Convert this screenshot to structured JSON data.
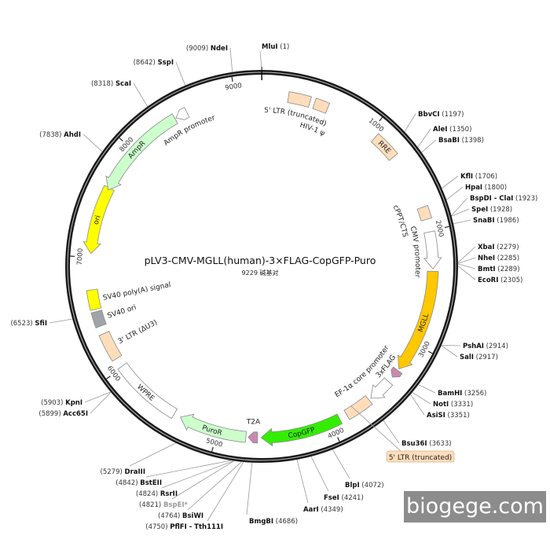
{
  "plasmid": {
    "title": "pLV3-CMV-MGLL(human)-3×FLAG-CopGFP-Puro",
    "subtitle": "9229 碱基对",
    "length_bp": 9229
  },
  "ticks": [
    1000,
    2000,
    3000,
    4000,
    5000,
    6000,
    7000,
    8000,
    9000
  ],
  "features": [
    {
      "name": "5' LTR (truncated)",
      "start": 230,
      "end": 420,
      "dir": 0,
      "color": "#FFDDBB",
      "label_pos": "inside-arc"
    },
    {
      "name": "HIV-1 ψ",
      "start": 460,
      "end": 580,
      "dir": 0,
      "color": "#FFDDBB",
      "label_pos": "inside-arc"
    },
    {
      "name": "RRE",
      "start": 1060,
      "end": 1290,
      "dir": 0,
      "color": "#FFDDBB",
      "label_pos": "on"
    },
    {
      "name": "cPPT/CTS",
      "start": 1790,
      "end": 1900,
      "dir": 0,
      "color": "#FFDDBB",
      "label_pos": "inside-arc"
    },
    {
      "name": "CMV promoter",
      "start": 2010,
      "end": 2330,
      "dir": 1,
      "color": "#FFFFFF",
      "label_pos": "inside-arc"
    },
    {
      "name": "MGLL",
      "start": 2350,
      "end": 3250,
      "dir": 1,
      "color": "#FFC800",
      "label_pos": "on"
    },
    {
      "name": "3xFLAG",
      "start": 3265,
      "end": 3340,
      "dir": 1,
      "color": "#C98AAE",
      "label_pos": "inside-arc"
    },
    {
      "name": "EF-1α core promoter",
      "start": 3390,
      "end": 3600,
      "dir": 1,
      "color": "#FFFFFF",
      "label_pos": "inside-arc"
    },
    {
      "name": "5' LTR (truncated)",
      "start": 3620,
      "end": 3850,
      "dir": 0,
      "color": "#FFDDBB",
      "label_pos": "callout"
    },
    {
      "name": "CopGFP",
      "start": 3920,
      "end": 4620,
      "dir": 1,
      "color": "#33EE00",
      "label_pos": "on"
    },
    {
      "name": "T2A",
      "start": 4650,
      "end": 4730,
      "dir": 1,
      "color": "#C98AAE",
      "label_pos": "outside-top"
    },
    {
      "name": "PuroR",
      "start": 4750,
      "end": 5340,
      "dir": 1,
      "color": "#CCFFCC",
      "label_pos": "on"
    },
    {
      "name": "WPRE",
      "start": 5400,
      "end": 6010,
      "dir": 0,
      "color": "#FFFFFF",
      "label_pos": "on"
    },
    {
      "name": "3' LTR (ΔU3)",
      "start": 6090,
      "end": 6330,
      "dir": 0,
      "color": "#FFDDBB",
      "label_pos": "inside-arc"
    },
    {
      "name": "SV40 ori",
      "start": 6400,
      "end": 6530,
      "dir": 0,
      "color": "#A0A4A8",
      "label_pos": "inside-arc"
    },
    {
      "name": "SV40 poly(A) signal",
      "start": 6550,
      "end": 6720,
      "dir": 0,
      "color": "#FFFF00",
      "label_pos": "inside-arc"
    },
    {
      "name": "ori",
      "start": 7030,
      "end": 7620,
      "dir": -1,
      "color": "#FFFF00",
      "label_pos": "on"
    },
    {
      "name": "AmpR",
      "start": 7600,
      "end": 8450,
      "dir": -1,
      "color": "#CCFFCC",
      "label_pos": "on"
    },
    {
      "name": "AmpR promoter",
      "start": 8460,
      "end": 8565,
      "dir": -1,
      "color": "#FFFFFF",
      "label_pos": "inside-arc"
    }
  ],
  "sites": [
    {
      "name": "MluI",
      "pos": 1
    },
    {
      "name": "BbvCI",
      "pos": 1197
    },
    {
      "name": "AleI",
      "pos": 1350
    },
    {
      "name": "BsaBI",
      "pos": 1398
    },
    {
      "name": "KflI",
      "pos": 1706
    },
    {
      "name": "HpaI",
      "pos": 1800
    },
    {
      "name": "BspDI - ClaI",
      "pos": 1923
    },
    {
      "name": "SpeI",
      "pos": 1928
    },
    {
      "name": "SnaBI",
      "pos": 1986
    },
    {
      "name": "XbaI",
      "pos": 2279
    },
    {
      "name": "NheI",
      "pos": 2285
    },
    {
      "name": "BmtI",
      "pos": 2289
    },
    {
      "name": "EcoRI",
      "pos": 2305
    },
    {
      "name": "PshAI",
      "pos": 2914
    },
    {
      "name": "SalI",
      "pos": 2917
    },
    {
      "name": "BamHI",
      "pos": 3256
    },
    {
      "name": "NotI",
      "pos": 3331
    },
    {
      "name": "AsiSI",
      "pos": 3351
    },
    {
      "name": "Bsu36I",
      "pos": 3633
    },
    {
      "name": "BlpI",
      "pos": 4072
    },
    {
      "name": "FseI",
      "pos": 4241
    },
    {
      "name": "AarI",
      "pos": 4349
    },
    {
      "name": "BmgBI",
      "pos": 4686
    },
    {
      "name": "NdeI",
      "pos": 9009
    },
    {
      "name": "SspI",
      "pos": 8642
    },
    {
      "name": "ScaI",
      "pos": 8318
    },
    {
      "name": "AhdI",
      "pos": 7838
    },
    {
      "name": "SfiI",
      "pos": 6523
    },
    {
      "name": "KpnI",
      "pos": 5903
    },
    {
      "name": "Acc65I",
      "pos": 5899
    },
    {
      "name": "DraIII",
      "pos": 5279
    },
    {
      "name": "BstEII",
      "pos": 4842
    },
    {
      "name": "RsrII",
      "pos": 4824
    },
    {
      "name": "BspEI*",
      "pos": 4821,
      "muted": true
    },
    {
      "name": "BsiWI",
      "pos": 4764
    },
    {
      "name": "PflFI - Tth111I",
      "pos": 4750
    }
  ],
  "watermark": "biogege.com"
}
